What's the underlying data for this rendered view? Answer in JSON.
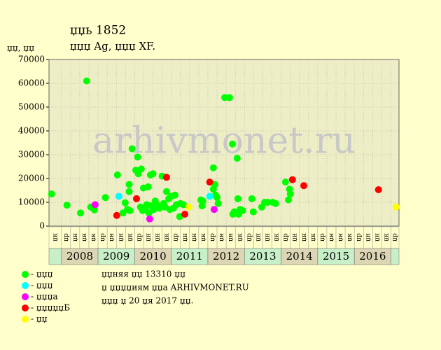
{
  "chart_data": {
    "type": "scatter",
    "title": "џџь 1852",
    "subtitle": "џџџ Ag, џџџ XF.",
    "y_label": "џџ, џџ",
    "watermark": "arhivmonet.ru",
    "xlim": [
      2007.66,
      2017.22
    ],
    "ylim": [
      0,
      70000
    ],
    "yticks": [
      0,
      10000,
      20000,
      30000,
      40000,
      50000,
      60000,
      70000
    ],
    "grid": true,
    "years": [
      "2008",
      "2009",
      "2010",
      "2011",
      "2012",
      "2013",
      "2014",
      "2015",
      "2016"
    ],
    "quarter_labels": [
      "џк",
      "џр",
      "џн",
      "џн",
      "џк",
      "џр",
      "џн",
      "џн",
      "џк",
      "џр",
      "џн",
      "џн",
      "џк",
      "џр",
      "џн",
      "џн",
      "џк",
      "џр",
      "џн",
      "џн",
      "џк",
      "џр",
      "џн",
      "џн",
      "џк",
      "џр",
      "џн",
      "џн",
      "џк",
      "џр",
      "џн",
      "џн",
      "џк",
      "џр",
      "џн",
      "џн",
      "џк",
      "џр"
    ],
    "series": [
      {
        "name": "- џџџ",
        "color": "#00ff00",
        "x": [
          2007.73,
          2008.15,
          2008.52,
          2008.69,
          2008.8,
          2008.9,
          2009.2,
          2009.53,
          2009.68,
          2009.74,
          2009.8,
          2009.85,
          2009.85,
          2009.87,
          2009.93,
          2010.03,
          2010.08,
          2010.1,
          2010.16,
          2010.18,
          2010.24,
          2010.22,
          2010.29,
          2010.33,
          2010.37,
          2010.39,
          2010.43,
          2010.45,
          2010.5,
          2010.52,
          2010.56,
          2010.6,
          2010.64,
          2010.68,
          2010.75,
          2010.79,
          2010.83,
          2010.87,
          2010.93,
          2010.96,
          2011.0,
          2011.06,
          2011.1,
          2011.14,
          2011.23,
          2011.25,
          2011.33,
          2011.81,
          2011.84,
          2011.86,
          2012.15,
          2012.15,
          2012.19,
          2012.21,
          2012.25,
          2012.28,
          2012.46,
          2012.59,
          2012.67,
          2012.68,
          2012.72,
          2012.8,
          2012.82,
          2012.84,
          2012.88,
          2012.95,
          2013.2,
          2013.24,
          2013.47,
          2013.55,
          2013.64,
          2013.77,
          2013.85,
          2014.12,
          2014.2,
          2014.23,
          2014.25
        ],
        "values": [
          13500,
          8800,
          5500,
          61000,
          8000,
          6800,
          12000,
          21500,
          5500,
          9800,
          7000,
          17500,
          14500,
          6500,
          32500,
          23500,
          29000,
          22000,
          8000,
          24000,
          16000,
          6500,
          7000,
          9000,
          16500,
          5500,
          21500,
          8500,
          22000,
          7000,
          10500,
          9000,
          8000,
          7500,
          21000,
          9500,
          8000,
          14500,
          11500,
          7000,
          12500,
          7500,
          13000,
          9000,
          4000,
          9500,
          9000,
          11000,
          8500,
          10500,
          15500,
          24500,
          17500,
          13000,
          12000,
          9500,
          54000,
          54000,
          34500,
          5000,
          6000,
          28500,
          11500,
          5000,
          7000,
          6500,
          11500,
          6000,
          8000,
          10000,
          10000,
          10000,
          9500,
          18500,
          11000,
          15500,
          13500
        ]
      },
      {
        "name": "- џџџ",
        "color": "#00ffff",
        "x": [
          2009.57,
          2012.05
        ],
        "values": [
          12500,
          12500
        ]
      },
      {
        "name": "- џџџа",
        "color": "#ff00ff",
        "x": [
          2008.92,
          2010.41,
          2012.17
        ],
        "values": [
          9000,
          3000,
          7000
        ]
      },
      {
        "name": "- џџџџџБ",
        "color": "#ff0000",
        "x": [
          2009.51,
          2010.05,
          2010.87,
          2011.37,
          2012.05,
          2014.31,
          2014.62,
          2016.66
        ],
        "values": [
          4500,
          11500,
          20500,
          5000,
          18500,
          19500,
          17000,
          15300
        ]
      },
      {
        "name": "- џџ",
        "color": "#ffff00",
        "x": [
          2011.48,
          2017.14
        ],
        "values": [
          8000,
          8000
        ]
      }
    ],
    "notes": [
      "џџняя џџ 13310 џџ",
      "џ џџџџиям џџа ARHIVMONET.RU",
      "џџџ џ 20 џя 2017 џџ."
    ]
  }
}
